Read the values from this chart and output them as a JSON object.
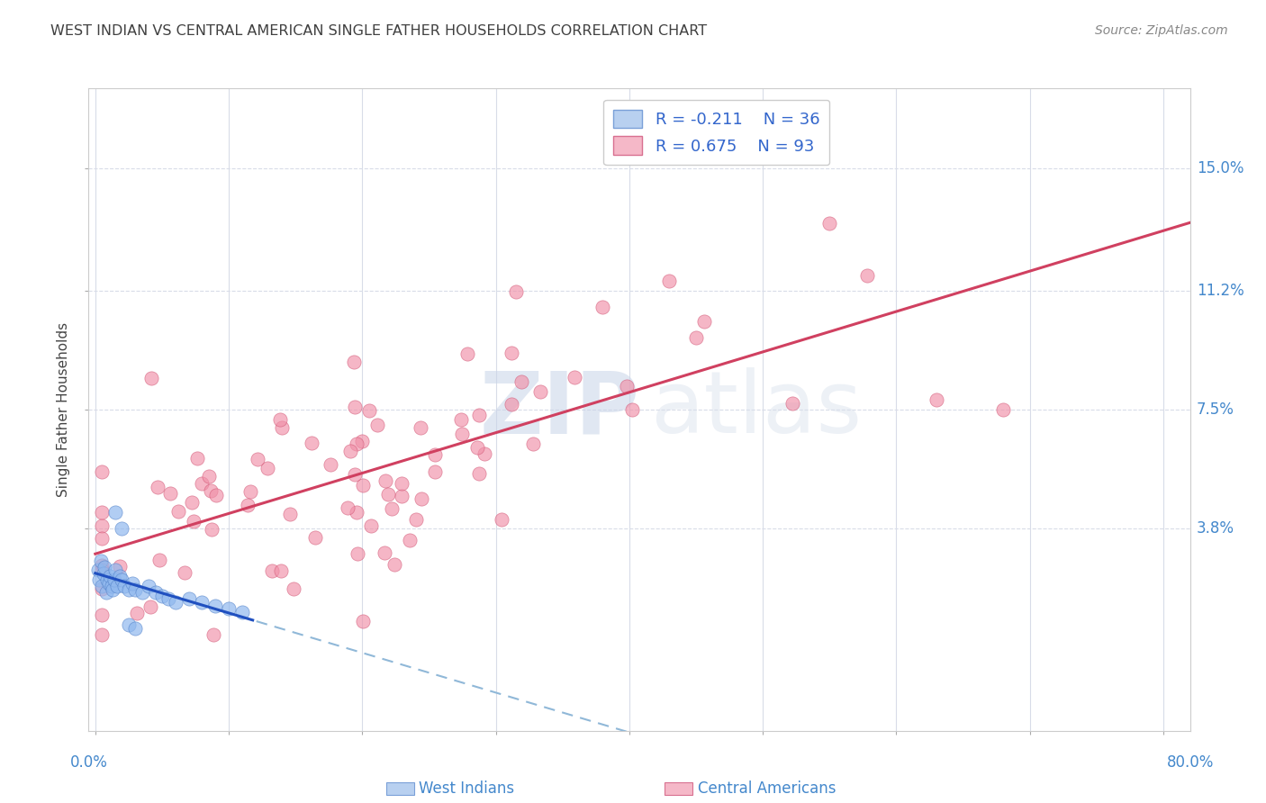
{
  "title": "WEST INDIAN VS CENTRAL AMERICAN SINGLE FATHER HOUSEHOLDS CORRELATION CHART",
  "source": "Source: ZipAtlas.com",
  "ylabel": "Single Father Households",
  "y_tick_labels": [
    "15.0%",
    "11.2%",
    "7.5%",
    "3.8%"
  ],
  "y_tick_values": [
    0.15,
    0.112,
    0.075,
    0.038
  ],
  "x_lim": [
    -0.005,
    0.82
  ],
  "y_lim": [
    -0.025,
    0.175
  ],
  "legend_entry1": {
    "color": "#b8d0f0",
    "R": "R = -0.211",
    "N": "N = 36"
  },
  "legend_entry2": {
    "color": "#f5b8c8",
    "R": "R = 0.675",
    "N": "N = 93"
  },
  "scatter_color_west": "#90b8ee",
  "scatter_color_central": "#f090a8",
  "scatter_edge_west": "#5080c8",
  "scatter_edge_central": "#d05070",
  "line_color_west_solid": "#2050c0",
  "line_color_west_dashed": "#90b8d8",
  "line_color_central": "#d04060",
  "watermark_zip": "ZIP",
  "watermark_atlas": "atlas",
  "background_color": "#ffffff",
  "grid_color": "#d8dce8",
  "title_color": "#404040",
  "tick_label_color_right": "#4488cc",
  "bottom_label_color": "#4488cc"
}
